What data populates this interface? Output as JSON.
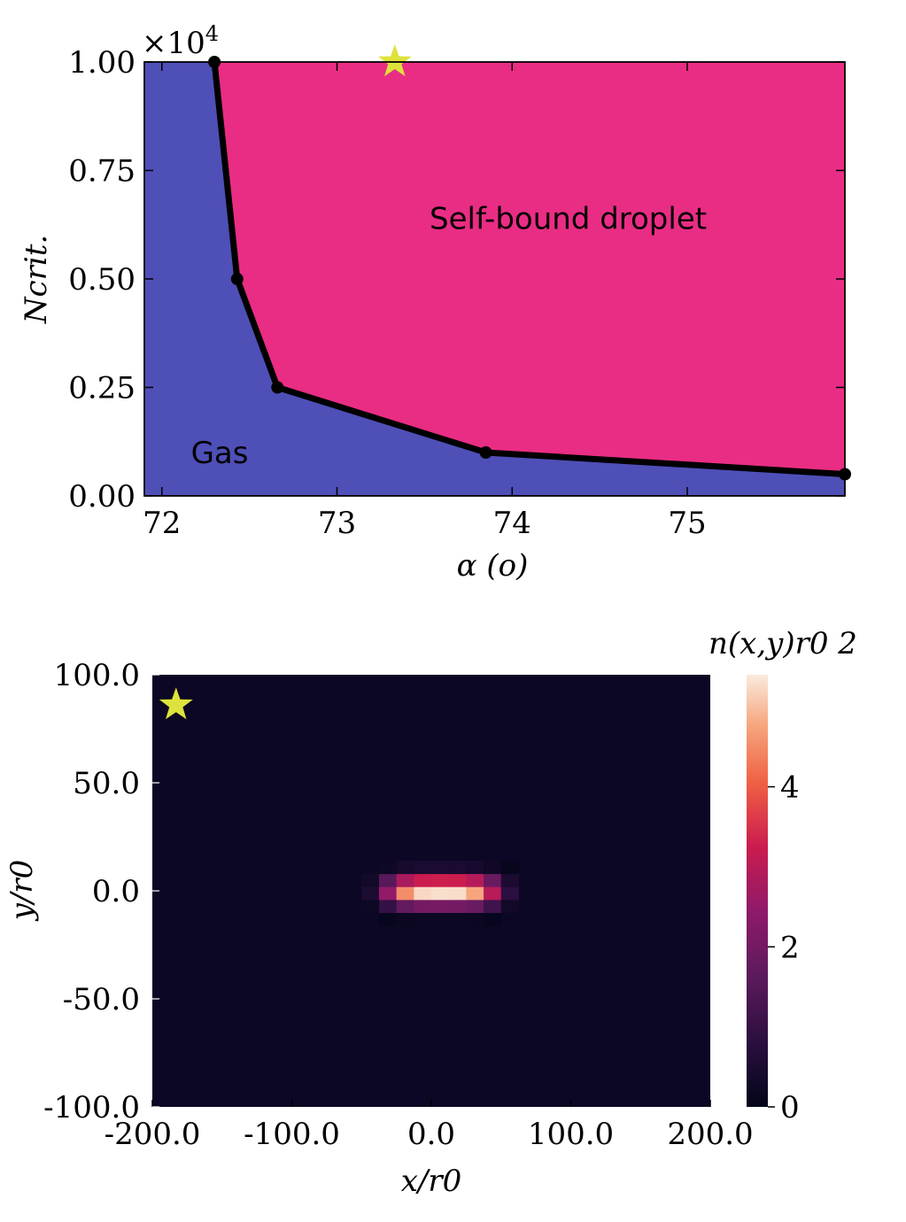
{
  "chart_data": [
    {
      "type": "area",
      "xlabel": "α (o)",
      "ylabel": "Ncrit.",
      "multiplier_label": "×10",
      "multiplier_exponent": "4",
      "xlim": [
        71.9,
        75.9
      ],
      "ylim": [
        0.0,
        1.0
      ],
      "xticks": [
        72,
        73,
        74,
        75
      ],
      "xtick_labels": [
        "72",
        "73",
        "74",
        "75"
      ],
      "yticks": [
        0.0,
        0.25,
        0.5,
        0.75,
        1.0
      ],
      "ytick_labels": [
        "0.00",
        "0.25",
        "0.50",
        "0.75",
        "1.00"
      ],
      "series": [
        {
          "x": [
            72.3,
            72.43,
            72.66,
            73.85,
            75.9
          ],
          "y": [
            1.0,
            0.5,
            0.25,
            0.1,
            0.05
          ]
        }
      ],
      "regions": [
        {
          "label": "Gas",
          "color": "#4f4fb8",
          "label_x": 72.33,
          "label_y": 0.1
        },
        {
          "label": "Self-bound droplet",
          "color": "#e92d84",
          "label_x": 74.32,
          "label_y": 0.64
        }
      ],
      "marker": {
        "shape": "star",
        "x": 73.33,
        "y": 1.0,
        "color": "#dde33b"
      },
      "grid": false
    },
    {
      "type": "heatmap",
      "xlabel": "x/r0",
      "ylabel": "y/r0",
      "colorbar_label": "n(x,y)r0 2",
      "xlim": [
        -200.0,
        200.0
      ],
      "ylim": [
        -100.0,
        100.0
      ],
      "xticks": [
        -200,
        -100,
        0,
        100,
        200
      ],
      "xtick_labels": [
        "-200.0",
        "-100.0",
        "0.0",
        "100.0",
        "200.0"
      ],
      "yticks": [
        -100,
        -50,
        0,
        50,
        100
      ],
      "ytick_labels": [
        "-100.0",
        "-50.0",
        "0.0",
        "50.0",
        "100.0"
      ],
      "cbar_ticks": [
        0,
        2,
        4
      ],
      "cbar_tick_labels": [
        "0",
        "2",
        "4"
      ],
      "cbar_range": [
        0,
        5.4
      ],
      "peak_density": 5.4,
      "peak_center": [
        7.5,
        0
      ],
      "sigma_x": 35,
      "sigma_y": 5,
      "marker": {
        "shape": "star",
        "x": -183,
        "y": 86,
        "color": "#dde33b"
      },
      "grid": false
    }
  ]
}
